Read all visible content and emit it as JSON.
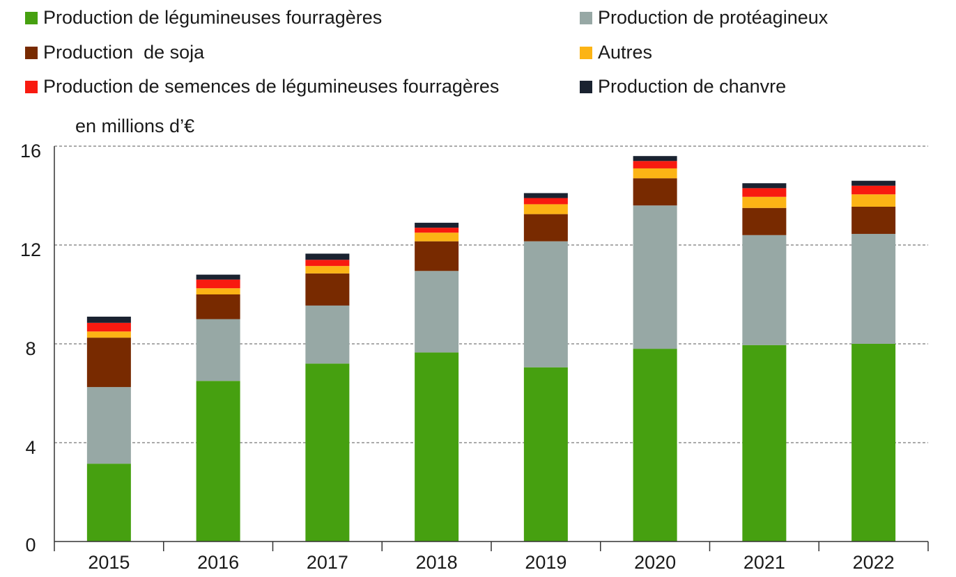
{
  "chart_data": {
    "type": "bar",
    "stacked": true,
    "title": "",
    "xlabel": "",
    "ylabel": "en millions d’€",
    "ylim": [
      0,
      16
    ],
    "yticks": [
      0,
      4,
      8,
      12,
      16
    ],
    "grid": true,
    "legend_position": "top",
    "categories": [
      "2015",
      "2016",
      "2017",
      "2018",
      "2019",
      "2020",
      "2021",
      "2022"
    ],
    "series": [
      {
        "name": "Production de légumineuses fourragères",
        "color": "#46A010",
        "values": [
          3.15,
          6.5,
          7.2,
          7.65,
          7.05,
          7.8,
          7.95,
          8.0
        ]
      },
      {
        "name": "Production de protéagineux",
        "color": "#97A8A5",
        "values": [
          3.1,
          2.5,
          2.35,
          3.3,
          5.1,
          5.8,
          4.45,
          4.45
        ]
      },
      {
        "name": "Production  de soja",
        "color": "#782A00",
        "values": [
          2.0,
          1.0,
          1.3,
          1.2,
          1.1,
          1.1,
          1.1,
          1.1
        ]
      },
      {
        "name": "Autres",
        "color": "#FCB415",
        "values": [
          0.25,
          0.25,
          0.3,
          0.35,
          0.4,
          0.4,
          0.45,
          0.5
        ]
      },
      {
        "name": "Production de semences de légumineuses fourragères",
        "color": "#F81A10",
        "values": [
          0.35,
          0.35,
          0.25,
          0.2,
          0.25,
          0.3,
          0.35,
          0.35
        ]
      },
      {
        "name": "Production de chanvre",
        "color": "#1A2230",
        "values": [
          0.25,
          0.2,
          0.25,
          0.2,
          0.2,
          0.2,
          0.2,
          0.2
        ]
      }
    ]
  }
}
